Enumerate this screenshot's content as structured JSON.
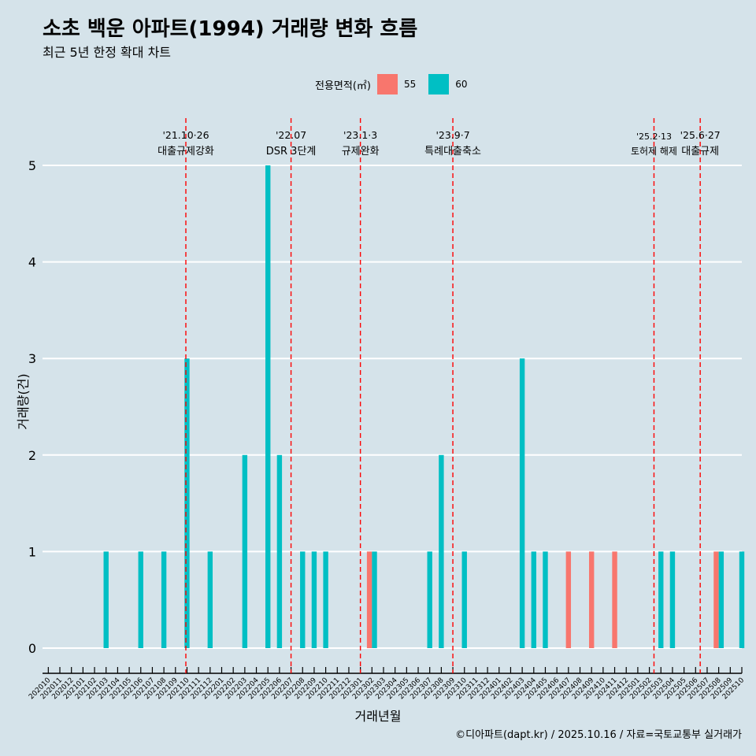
{
  "title": "소초 백운 아파트(1994) 거래량 변화 흐름",
  "subtitle": "최근 5년 한정 확대 차트",
  "caption": "©디아파트(dapt.kr) / 2025.10.16 / 자료=국토교통부 실거래가",
  "colors": {
    "background": "#d5e3ea",
    "s55": "#f8766d",
    "s60": "#00bfc4",
    "vline": "#ff0000",
    "grid": "#ffffff"
  },
  "chart_data": {
    "type": "bar",
    "title": "소초 백운 아파트(1994) 거래량 변화 흐름",
    "subtitle": "최근 5년 한정 확대 차트",
    "xlabel": "거래년월",
    "ylabel": "거래량(건)",
    "ylim": [
      0,
      5
    ],
    "yticks": [
      "0",
      "1",
      "2",
      "3",
      "4",
      "5"
    ],
    "legend_title": "전용면적(㎡)",
    "legend_position": "top",
    "categories": [
      "202010",
      "202011",
      "202012",
      "202101",
      "202102",
      "202103",
      "202104",
      "202105",
      "202106",
      "202107",
      "202108",
      "202109",
      "202110",
      "202111",
      "202112",
      "202201",
      "202202",
      "202203",
      "202204",
      "202205",
      "202206",
      "202207",
      "202208",
      "202209",
      "202210",
      "202211",
      "202212",
      "202301",
      "202302",
      "202303",
      "202304",
      "202305",
      "202306",
      "202307",
      "202308",
      "202309",
      "202310",
      "202311",
      "202312",
      "202401",
      "202402",
      "202403",
      "202404",
      "202405",
      "202406",
      "202407",
      "202408",
      "202409",
      "202410",
      "202411",
      "202412",
      "202501",
      "202502",
      "202503",
      "202504",
      "202505",
      "202506",
      "202507",
      "202508",
      "202509",
      "202510"
    ],
    "series": [
      {
        "name": "55",
        "values": [
          0,
          0,
          0,
          0,
          0,
          0,
          0,
          0,
          0,
          0,
          0,
          0,
          0,
          0,
          0,
          0,
          0,
          0,
          0,
          0,
          0,
          0,
          0,
          0,
          0,
          0,
          0,
          0,
          1,
          0,
          0,
          0,
          0,
          0,
          0,
          0,
          0,
          0,
          0,
          0,
          0,
          0,
          0,
          0,
          0,
          1,
          0,
          1,
          0,
          1,
          0,
          0,
          0,
          0,
          0,
          0,
          0,
          0,
          1,
          0,
          0
        ]
      },
      {
        "name": "60",
        "values": [
          0,
          0,
          0,
          0,
          0,
          1,
          0,
          0,
          1,
          0,
          1,
          0,
          3,
          0,
          1,
          0,
          0,
          2,
          0,
          5,
          2,
          0,
          1,
          1,
          1,
          0,
          0,
          0,
          1,
          0,
          0,
          0,
          0,
          1,
          2,
          0,
          1,
          0,
          0,
          0,
          0,
          3,
          1,
          1,
          0,
          0,
          0,
          0,
          0,
          0,
          0,
          0,
          0,
          1,
          1,
          0,
          0,
          0,
          1,
          0,
          1
        ]
      }
    ],
    "annotations": [
      {
        "at": 11.9,
        "date": "'21.10·26",
        "label": "대출규제강화"
      },
      {
        "at": 21,
        "date": "'22.07",
        "label": "DSR 3단계"
      },
      {
        "at": 27,
        "date": "'23.1·3",
        "label": "규제완화"
      },
      {
        "at": 35,
        "date": "'23.9·7",
        "label": "특례대출축소"
      },
      {
        "at": 52.4,
        "date": "'25.2·13",
        "label": "토허제 해제"
      },
      {
        "at": 56.4,
        "date": "'25.6·27",
        "label": "대출규제"
      }
    ]
  }
}
